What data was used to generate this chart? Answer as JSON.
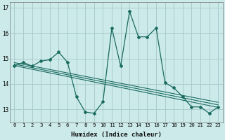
{
  "xlabel": "Humidex (Indice chaleur)",
  "background_color": "#cceaea",
  "grid_color": "#aacccc",
  "line_color": "#1a6b60",
  "xlim": [
    -0.5,
    23.5
  ],
  "ylim": [
    12.5,
    17.2
  ],
  "yticks": [
    13,
    14,
    15,
    16,
    17
  ],
  "xticks": [
    0,
    1,
    2,
    3,
    4,
    5,
    6,
    7,
    8,
    9,
    10,
    11,
    12,
    13,
    14,
    15,
    16,
    17,
    18,
    19,
    20,
    21,
    22,
    23
  ],
  "series1_x": [
    0,
    1,
    2,
    3,
    4,
    5,
    6,
    7,
    8,
    9,
    10,
    11,
    12,
    13,
    14,
    15,
    16,
    17,
    18,
    19,
    20,
    21,
    22,
    23
  ],
  "series1_y": [
    14.7,
    14.85,
    14.7,
    14.9,
    14.95,
    15.25,
    14.85,
    13.5,
    12.9,
    12.85,
    13.3,
    16.2,
    14.7,
    16.85,
    15.85,
    15.85,
    16.2,
    14.05,
    13.85,
    13.5,
    13.1,
    13.1,
    12.85,
    13.1
  ],
  "trend_lines": [
    {
      "x": [
        0,
        23
      ],
      "y": [
        14.72,
        13.08
      ]
    },
    {
      "x": [
        0,
        23
      ],
      "y": [
        14.78,
        13.18
      ]
    },
    {
      "x": [
        0,
        23
      ],
      "y": [
        14.84,
        13.28
      ]
    }
  ]
}
